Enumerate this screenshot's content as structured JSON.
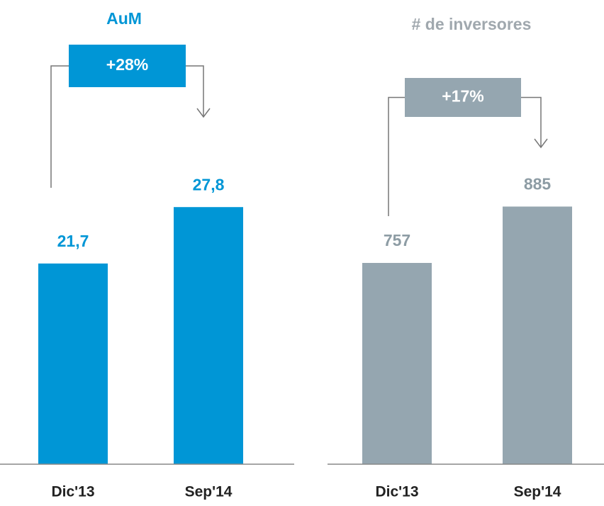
{
  "chart_data": [
    {
      "type": "bar",
      "title": "AuM",
      "annotation": "+28%",
      "categories": [
        "Dic'13",
        "Sep'14"
      ],
      "values": [
        21.7,
        27.8
      ],
      "value_labels": [
        "21,7",
        "27,8"
      ],
      "color": "#0096d6",
      "label_color": "#0096d6",
      "title_color": "#0096d6",
      "ylim": [
        0,
        30
      ]
    },
    {
      "type": "bar",
      "title": "# de inversores",
      "annotation": "+17%",
      "categories": [
        "Dic'13",
        "Sep'14"
      ],
      "values": [
        757,
        885
      ],
      "color": "#95a6b0",
      "label_color": "#8d9ca4",
      "title_color": "#a0a8ae",
      "ylim": [
        300,
        930
      ]
    }
  ]
}
